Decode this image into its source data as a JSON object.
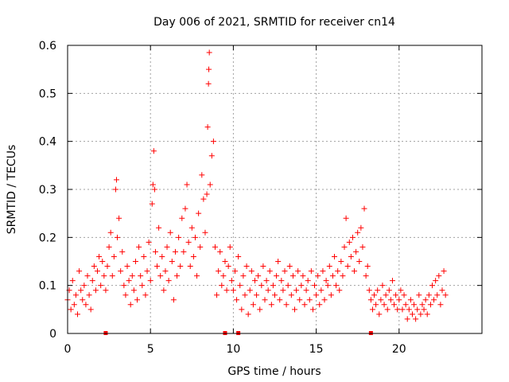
{
  "chart_data": {
    "type": "scatter",
    "title": "Day 006 of 2021, SRMTID for receiver cn14",
    "xlabel": "GPS time / hours",
    "ylabel": "SRMTID / TECUs",
    "xlim": [
      0,
      25
    ],
    "ylim": [
      0,
      0.6
    ],
    "xticks": [
      0,
      5,
      10,
      15,
      20
    ],
    "yticks": [
      0,
      0.1,
      0.2,
      0.3,
      0.4,
      0.5,
      0.6
    ],
    "xtick_labels": [
      "0",
      "5",
      "10",
      "15",
      "20"
    ],
    "ytick_labels": [
      "0",
      "0.1",
      "0.2",
      "0.3",
      "0.4",
      "0.5",
      "0.6"
    ],
    "grid": true,
    "marker": "+",
    "color": "#ff0000",
    "axis_markers_x": [
      2.3,
      9.5,
      10.3,
      18.3
    ],
    "series": [
      {
        "name": "SRMTID",
        "points": [
          [
            0.0,
            0.07
          ],
          [
            0.1,
            0.09
          ],
          [
            0.2,
            0.05
          ],
          [
            0.3,
            0.11
          ],
          [
            0.4,
            0.06
          ],
          [
            0.5,
            0.08
          ],
          [
            0.6,
            0.04
          ],
          [
            0.7,
            0.13
          ],
          [
            0.8,
            0.09
          ],
          [
            0.9,
            0.07
          ],
          [
            1.0,
            0.1
          ],
          [
            1.1,
            0.06
          ],
          [
            1.2,
            0.12
          ],
          [
            1.3,
            0.08
          ],
          [
            1.4,
            0.05
          ],
          [
            1.5,
            0.11
          ],
          [
            1.6,
            0.14
          ],
          [
            1.7,
            0.09
          ],
          [
            1.8,
            0.13
          ],
          [
            1.9,
            0.16
          ],
          [
            2.0,
            0.1
          ],
          [
            2.1,
            0.15
          ],
          [
            2.2,
            0.12
          ],
          [
            2.3,
            0.09
          ],
          [
            2.4,
            0.14
          ],
          [
            2.5,
            0.18
          ],
          [
            2.6,
            0.21
          ],
          [
            2.7,
            0.12
          ],
          [
            2.8,
            0.16
          ],
          [
            2.9,
            0.3
          ],
          [
            2.95,
            0.32
          ],
          [
            3.0,
            0.2
          ],
          [
            3.1,
            0.24
          ],
          [
            3.2,
            0.13
          ],
          [
            3.3,
            0.17
          ],
          [
            3.4,
            0.1
          ],
          [
            3.5,
            0.08
          ],
          [
            3.6,
            0.14
          ],
          [
            3.7,
            0.11
          ],
          [
            3.8,
            0.06
          ],
          [
            3.9,
            0.12
          ],
          [
            4.0,
            0.09
          ],
          [
            4.1,
            0.15
          ],
          [
            4.2,
            0.07
          ],
          [
            4.3,
            0.18
          ],
          [
            4.4,
            0.12
          ],
          [
            4.5,
            0.1
          ],
          [
            4.6,
            0.16
          ],
          [
            4.7,
            0.08
          ],
          [
            4.8,
            0.13
          ],
          [
            4.9,
            0.19
          ],
          [
            5.0,
            0.11
          ],
          [
            5.1,
            0.27
          ],
          [
            5.15,
            0.31
          ],
          [
            5.2,
            0.38
          ],
          [
            5.25,
            0.3
          ],
          [
            5.3,
            0.17
          ],
          [
            5.4,
            0.14
          ],
          [
            5.5,
            0.22
          ],
          [
            5.6,
            0.12
          ],
          [
            5.7,
            0.16
          ],
          [
            5.8,
            0.09
          ],
          [
            5.9,
            0.13
          ],
          [
            6.0,
            0.18
          ],
          [
            6.1,
            0.11
          ],
          [
            6.2,
            0.21
          ],
          [
            6.3,
            0.15
          ],
          [
            6.4,
            0.07
          ],
          [
            6.5,
            0.17
          ],
          [
            6.6,
            0.12
          ],
          [
            6.7,
            0.2
          ],
          [
            6.8,
            0.14
          ],
          [
            6.9,
            0.24
          ],
          [
            7.0,
            0.17
          ],
          [
            7.1,
            0.26
          ],
          [
            7.2,
            0.31
          ],
          [
            7.3,
            0.19
          ],
          [
            7.4,
            0.14
          ],
          [
            7.5,
            0.22
          ],
          [
            7.6,
            0.16
          ],
          [
            7.7,
            0.2
          ],
          [
            7.8,
            0.12
          ],
          [
            7.9,
            0.25
          ],
          [
            8.0,
            0.18
          ],
          [
            8.1,
            0.33
          ],
          [
            8.2,
            0.28
          ],
          [
            8.3,
            0.21
          ],
          [
            8.4,
            0.29
          ],
          [
            8.45,
            0.43
          ],
          [
            8.5,
            0.52
          ],
          [
            8.52,
            0.55
          ],
          [
            8.55,
            0.585
          ],
          [
            8.6,
            0.31
          ],
          [
            8.7,
            0.37
          ],
          [
            8.8,
            0.4
          ],
          [
            8.9,
            0.18
          ],
          [
            9.0,
            0.08
          ],
          [
            9.1,
            0.13
          ],
          [
            9.2,
            0.17
          ],
          [
            9.3,
            0.1
          ],
          [
            9.4,
            0.12
          ],
          [
            9.5,
            0.15
          ],
          [
            9.6,
            0.09
          ],
          [
            9.7,
            0.14
          ],
          [
            9.8,
            0.18
          ],
          [
            9.9,
            0.11
          ],
          [
            10.0,
            0.09
          ],
          [
            10.1,
            0.13
          ],
          [
            10.2,
            0.07
          ],
          [
            10.3,
            0.16
          ],
          [
            10.4,
            0.1
          ],
          [
            10.5,
            0.05
          ],
          [
            10.6,
            0.12
          ],
          [
            10.7,
            0.08
          ],
          [
            10.8,
            0.14
          ],
          [
            10.9,
            0.04
          ],
          [
            11.0,
            0.09
          ],
          [
            11.1,
            0.13
          ],
          [
            11.2,
            0.06
          ],
          [
            11.3,
            0.11
          ],
          [
            11.4,
            0.08
          ],
          [
            11.5,
            0.12
          ],
          [
            11.6,
            0.05
          ],
          [
            11.7,
            0.1
          ],
          [
            11.8,
            0.14
          ],
          [
            11.9,
            0.07
          ],
          [
            12.0,
            0.11
          ],
          [
            12.1,
            0.09
          ],
          [
            12.2,
            0.13
          ],
          [
            12.3,
            0.06
          ],
          [
            12.4,
            0.1
          ],
          [
            12.5,
            0.08
          ],
          [
            12.6,
            0.12
          ],
          [
            12.7,
            0.15
          ],
          [
            12.8,
            0.07
          ],
          [
            12.9,
            0.11
          ],
          [
            13.0,
            0.09
          ],
          [
            13.1,
            0.13
          ],
          [
            13.2,
            0.06
          ],
          [
            13.3,
            0.1
          ],
          [
            13.4,
            0.14
          ],
          [
            13.5,
            0.08
          ],
          [
            13.6,
            0.12
          ],
          [
            13.7,
            0.05
          ],
          [
            13.8,
            0.09
          ],
          [
            13.9,
            0.13
          ],
          [
            14.0,
            0.07
          ],
          [
            14.1,
            0.1
          ],
          [
            14.2,
            0.12
          ],
          [
            14.3,
            0.06
          ],
          [
            14.4,
            0.09
          ],
          [
            14.5,
            0.11
          ],
          [
            14.6,
            0.07
          ],
          [
            14.7,
            0.13
          ],
          [
            14.8,
            0.05
          ],
          [
            14.9,
            0.1
          ],
          [
            15.0,
            0.08
          ],
          [
            15.1,
            0.12
          ],
          [
            15.2,
            0.06
          ],
          [
            15.3,
            0.09
          ],
          [
            15.4,
            0.13
          ],
          [
            15.5,
            0.07
          ],
          [
            15.6,
            0.11
          ],
          [
            15.7,
            0.1
          ],
          [
            15.8,
            0.14
          ],
          [
            15.9,
            0.08
          ],
          [
            16.0,
            0.12
          ],
          [
            16.1,
            0.16
          ],
          [
            16.2,
            0.1
          ],
          [
            16.3,
            0.13
          ],
          [
            16.4,
            0.09
          ],
          [
            16.5,
            0.15
          ],
          [
            16.6,
            0.12
          ],
          [
            16.7,
            0.18
          ],
          [
            16.8,
            0.24
          ],
          [
            16.9,
            0.14
          ],
          [
            17.0,
            0.19
          ],
          [
            17.1,
            0.16
          ],
          [
            17.2,
            0.2
          ],
          [
            17.3,
            0.13
          ],
          [
            17.4,
            0.17
          ],
          [
            17.5,
            0.21
          ],
          [
            17.6,
            0.15
          ],
          [
            17.7,
            0.22
          ],
          [
            17.8,
            0.18
          ],
          [
            17.9,
            0.26
          ],
          [
            18.0,
            0.12
          ],
          [
            18.1,
            0.14
          ],
          [
            18.2,
            0.09
          ],
          [
            18.3,
            0.07
          ],
          [
            18.4,
            0.05
          ],
          [
            18.5,
            0.08
          ],
          [
            18.6,
            0.06
          ],
          [
            18.7,
            0.09
          ],
          [
            18.8,
            0.04
          ],
          [
            18.9,
            0.07
          ],
          [
            19.0,
            0.1
          ],
          [
            19.1,
            0.06
          ],
          [
            19.2,
            0.08
          ],
          [
            19.3,
            0.05
          ],
          [
            19.4,
            0.09
          ],
          [
            19.5,
            0.07
          ],
          [
            19.6,
            0.11
          ],
          [
            19.7,
            0.06
          ],
          [
            19.8,
            0.08
          ],
          [
            19.9,
            0.05
          ],
          [
            20.0,
            0.07
          ],
          [
            20.1,
            0.09
          ],
          [
            20.2,
            0.05
          ],
          [
            20.3,
            0.08
          ],
          [
            20.4,
            0.06
          ],
          [
            20.5,
            0.03
          ],
          [
            20.6,
            0.05
          ],
          [
            20.7,
            0.07
          ],
          [
            20.8,
            0.04
          ],
          [
            20.9,
            0.06
          ],
          [
            21.0,
            0.03
          ],
          [
            21.1,
            0.05
          ],
          [
            21.2,
            0.08
          ],
          [
            21.3,
            0.04
          ],
          [
            21.4,
            0.06
          ],
          [
            21.5,
            0.05
          ],
          [
            21.6,
            0.07
          ],
          [
            21.7,
            0.04
          ],
          [
            21.8,
            0.08
          ],
          [
            21.9,
            0.06
          ],
          [
            22.0,
            0.1
          ],
          [
            22.1,
            0.07
          ],
          [
            22.2,
            0.11
          ],
          [
            22.3,
            0.08
          ],
          [
            22.4,
            0.12
          ],
          [
            22.5,
            0.06
          ],
          [
            22.6,
            0.09
          ],
          [
            22.7,
            0.13
          ],
          [
            22.8,
            0.08
          ]
        ]
      }
    ]
  }
}
